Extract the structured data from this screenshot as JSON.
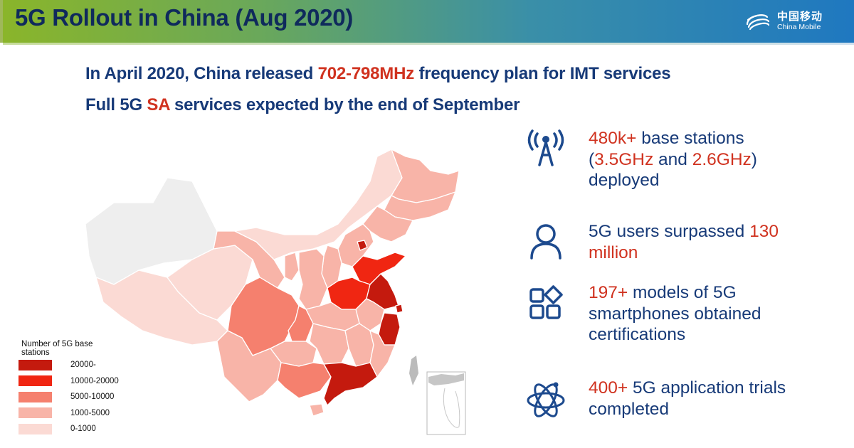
{
  "header": {
    "title": "5G Rollout in China (Aug 2020)",
    "logo": {
      "cn": "中国移动",
      "en": "China Mobile",
      "icon": "china-mobile-logo-icon"
    }
  },
  "subtitles": [
    {
      "pre": "In April 2020, China released ",
      "highlight": "702-798MHz",
      "post": " frequency plan for IMT services"
    },
    {
      "pre": "Full 5G ",
      "highlight": "SA",
      "post": " services expected by the end of September"
    }
  ],
  "colors": {
    "title": "#0f2a5c",
    "text": "#173a78",
    "highlight": "#d0321f",
    "level_20000_plus": "#c41a0e",
    "level_10000_20000": "#f02612",
    "level_5000_10000": "#f5806e",
    "level_1000_5000": "#f8b4a8",
    "level_0_1000": "#fbdad4",
    "no_data": "#eeeeee"
  },
  "legend": {
    "title": "Number of 5G base stations",
    "items": [
      {
        "label": "20000-",
        "color": "#c41a0e"
      },
      {
        "label": "10000-20000",
        "color": "#f02612"
      },
      {
        "label": "5000-10000",
        "color": "#f5806e"
      },
      {
        "label": "1000-5000",
        "color": "#f8b4a8"
      },
      {
        "label": "0-1000",
        "color": "#fbdad4"
      }
    ]
  },
  "map": {
    "regions_by_level": {
      "20000-": [
        "Beijing",
        "Jiangsu",
        "Shanghai",
        "Zhejiang",
        "Guangdong"
      ],
      "10000-20000": [
        "Shandong",
        "Henan"
      ],
      "5000-10000": [
        "Sichuan",
        "Chongqing",
        "Guangxi"
      ],
      "1000-5000": [
        "Heilongjiang",
        "Jilin",
        "Liaoning",
        "Hebei",
        "Tianjin",
        "Shanxi",
        "Shaanxi",
        "Ningxia",
        "Gansu",
        "Hubei",
        "Hunan",
        "Anhui",
        "Jiangxi",
        "Fujian",
        "Guizhou",
        "Yunnan",
        "Hainan"
      ],
      "0-1000": [
        "Inner Mongolia",
        "Qinghai",
        "Tibet"
      ],
      "no data": [
        "Xinjiang",
        "Taiwan"
      ]
    }
  },
  "stats": [
    {
      "icon": "cell-tower-icon",
      "lines": [
        [
          {
            "t": "480k+",
            "hl": true
          },
          {
            "t": " base stations",
            "hl": false
          }
        ],
        [
          {
            "t": "(",
            "hl": false
          },
          {
            "t": "3.5GHz",
            "hl": true
          },
          {
            "t": " and ",
            "hl": false
          },
          {
            "t": "2.6GHz",
            "hl": true
          },
          {
            "t": ")",
            "hl": false
          }
        ],
        [
          {
            "t": "deployed",
            "hl": false
          }
        ]
      ]
    },
    {
      "icon": "user-icon",
      "lines": [
        [
          {
            "t": "5G users surpassed ",
            "hl": false
          },
          {
            "t": "130",
            "hl": true
          }
        ],
        [
          {
            "t": "million",
            "hl": true
          }
        ]
      ]
    },
    {
      "icon": "apps-grid-icon",
      "lines": [
        [
          {
            "t": "197+",
            "hl": true
          },
          {
            "t": " models of 5G",
            "hl": false
          }
        ],
        [
          {
            "t": "smartphones obtained",
            "hl": false
          }
        ],
        [
          {
            "t": "certifications",
            "hl": false
          }
        ]
      ]
    },
    {
      "icon": "atom-icon",
      "lines": [
        [
          {
            "t": "400+",
            "hl": true
          },
          {
            "t": " 5G  application trials",
            "hl": false
          }
        ],
        [
          {
            "t": "completed",
            "hl": false
          }
        ]
      ]
    }
  ]
}
